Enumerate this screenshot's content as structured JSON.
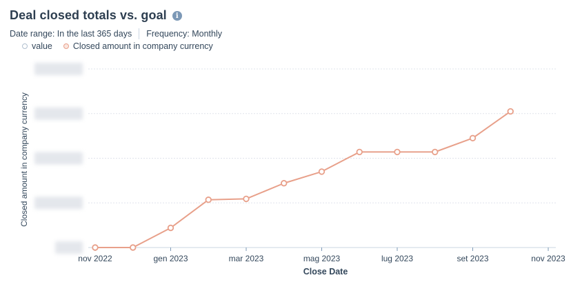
{
  "header": {
    "title": "Deal closed totals vs. goal",
    "date_range": "Date range: In the last 365 days",
    "frequency": "Frequency: Monthly"
  },
  "legend": {
    "items": [
      {
        "label": "value",
        "color": "#b0bfcf"
      },
      {
        "label": "Closed amount in company currency",
        "color": "#e8a08a"
      }
    ]
  },
  "icons": {
    "info": "info-icon"
  },
  "chart_data": {
    "type": "line",
    "xlabel": "Close Date",
    "ylabel": "Closed amount in company currency",
    "x_ticks": [
      "nov 2022",
      "gen 2023",
      "mar 2023",
      "mag 2023",
      "lug 2023",
      "set 2023",
      "nov 2023"
    ],
    "y_tick_labels_obscured": true,
    "ylim": [
      0,
      4
    ],
    "grid": true,
    "legend_position": "top-left",
    "series": [
      {
        "name": "Closed amount in company currency",
        "color": "#e8a08a",
        "x": [
          "2022-11",
          "2022-12",
          "2023-01",
          "2023-02",
          "2023-03",
          "2023-04",
          "2023-05",
          "2023-06",
          "2023-07",
          "2023-08",
          "2023-09",
          "2023-10"
        ],
        "values": [
          0,
          0,
          0.44,
          1.07,
          1.09,
          1.44,
          1.7,
          2.14,
          2.14,
          2.14,
          2.45,
          3.05
        ]
      }
    ]
  }
}
